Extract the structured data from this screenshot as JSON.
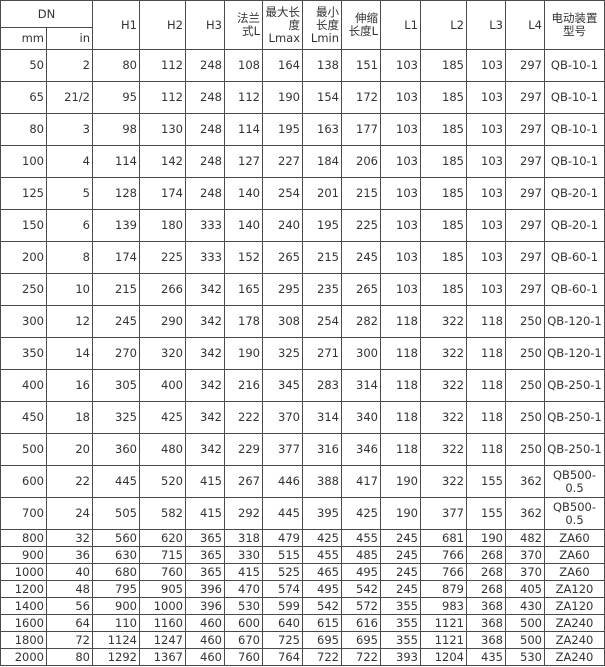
{
  "header": {
    "dn": "DN",
    "mm": "mm",
    "in": "in",
    "columns": [
      "H1",
      "H2",
      "H3",
      "法兰式L",
      "最大长度Lmax",
      "最小长度Lmin",
      "伸缩长度L",
      "L1",
      "L2",
      "L3",
      "L4",
      "电动装置型号"
    ]
  },
  "rows": [
    [
      "50",
      "2",
      "80",
      "112",
      "248",
      "108",
      "164",
      "138",
      "151",
      "103",
      "185",
      "103",
      "297",
      "QB-10-1"
    ],
    [
      "65",
      "21/2",
      "95",
      "112",
      "248",
      "112",
      "190",
      "154",
      "172",
      "103",
      "185",
      "103",
      "297",
      "QB-10-1"
    ],
    [
      "80",
      "3",
      "98",
      "130",
      "248",
      "114",
      "195",
      "163",
      "177",
      "103",
      "185",
      "103",
      "297",
      "QB-10-1"
    ],
    [
      "100",
      "4",
      "114",
      "142",
      "248",
      "127",
      "227",
      "184",
      "206",
      "103",
      "185",
      "103",
      "297",
      "QB-10-1"
    ],
    [
      "125",
      "5",
      "128",
      "174",
      "248",
      "140",
      "254",
      "201",
      "215",
      "103",
      "185",
      "103",
      "297",
      "QB-20-1"
    ],
    [
      "150",
      "6",
      "139",
      "180",
      "333",
      "140",
      "240",
      "195",
      "225",
      "103",
      "185",
      "103",
      "297",
      "QB-20-1"
    ],
    [
      "200",
      "8",
      "174",
      "225",
      "333",
      "152",
      "265",
      "215",
      "245",
      "103",
      "185",
      "103",
      "297",
      "QB-60-1"
    ],
    [
      "250",
      "10",
      "215",
      "266",
      "342",
      "165",
      "295",
      "235",
      "265",
      "103",
      "185",
      "103",
      "297",
      "QB-60-1"
    ],
    [
      "300",
      "12",
      "245",
      "290",
      "342",
      "178",
      "308",
      "254",
      "282",
      "118",
      "322",
      "118",
      "250",
      "QB-120-1"
    ],
    [
      "350",
      "14",
      "270",
      "320",
      "342",
      "190",
      "325",
      "271",
      "300",
      "118",
      "322",
      "118",
      "250",
      "QB-120-1"
    ],
    [
      "400",
      "16",
      "305",
      "400",
      "342",
      "216",
      "345",
      "283",
      "314",
      "118",
      "322",
      "118",
      "250",
      "QB-250-1"
    ],
    [
      "450",
      "18",
      "325",
      "425",
      "342",
      "222",
      "370",
      "314",
      "340",
      "118",
      "322",
      "118",
      "250",
      "QB-250-1"
    ],
    [
      "500",
      "20",
      "360",
      "480",
      "342",
      "229",
      "377",
      "316",
      "346",
      "118",
      "322",
      "118",
      "250",
      "QB-250-1"
    ],
    [
      "600",
      "22",
      "445",
      "520",
      "415",
      "267",
      "446",
      "388",
      "417",
      "190",
      "322",
      "155",
      "362",
      "QB500-0.5"
    ],
    [
      "700",
      "24",
      "505",
      "582",
      "415",
      "292",
      "445",
      "395",
      "425",
      "190",
      "377",
      "155",
      "362",
      "QB500-0.5"
    ],
    [
      "800",
      "32",
      "560",
      "620",
      "365",
      "318",
      "479",
      "425",
      "455",
      "245",
      "681",
      "190",
      "482",
      "ZA60"
    ],
    [
      "900",
      "36",
      "630",
      "715",
      "365",
      "330",
      "515",
      "455",
      "485",
      "245",
      "766",
      "268",
      "370",
      "ZA60"
    ],
    [
      "1000",
      "40",
      "680",
      "760",
      "365",
      "415",
      "525",
      "465",
      "495",
      "245",
      "766",
      "268",
      "370",
      "ZA60"
    ],
    [
      "1200",
      "48",
      "795",
      "905",
      "396",
      "470",
      "574",
      "495",
      "542",
      "245",
      "879",
      "268",
      "405",
      "ZA120"
    ],
    [
      "1400",
      "56",
      "900",
      "1000",
      "396",
      "530",
      "599",
      "542",
      "572",
      "355",
      "983",
      "368",
      "430",
      "ZA120"
    ],
    [
      "1600",
      "64",
      "110",
      "1160",
      "460",
      "600",
      "640",
      "615",
      "616",
      "355",
      "1121",
      "368",
      "500",
      "ZA240"
    ],
    [
      "1800",
      "72",
      "1124",
      "1247",
      "460",
      "670",
      "725",
      "695",
      "695",
      "355",
      "1121",
      "368",
      "500",
      "ZA240"
    ],
    [
      "2000",
      "80",
      "1292",
      "1367",
      "460",
      "760",
      "764",
      "722",
      "722",
      "393",
      "1204",
      "435",
      "530",
      "ZA240"
    ]
  ]
}
